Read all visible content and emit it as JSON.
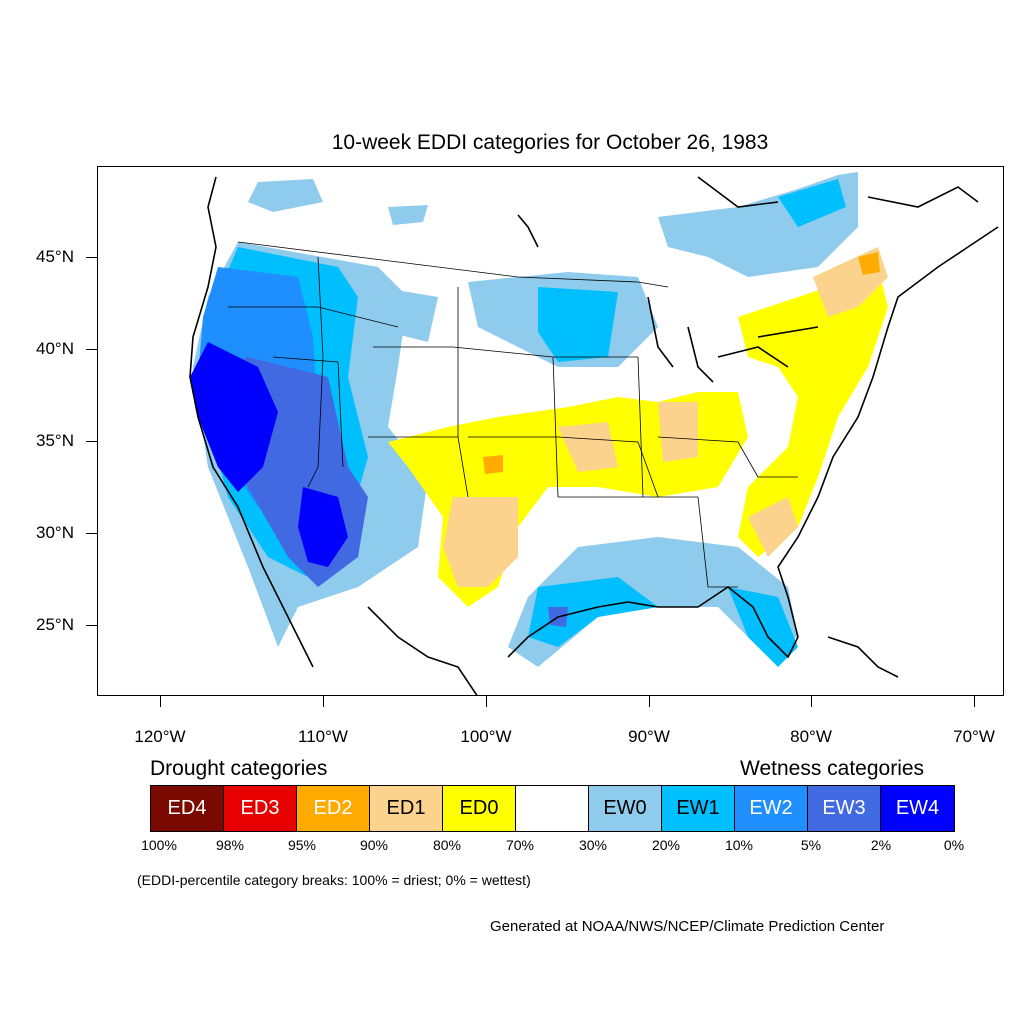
{
  "title": "10-week EDDI categories for October 26, 1983",
  "lat_labels": [
    "45°N",
    "40°N",
    "35°N",
    "30°N",
    "25°N"
  ],
  "lon_labels": [
    "120°W",
    "110°W",
    "100°W",
    "90°W",
    "80°W",
    "70°W"
  ],
  "legend": {
    "drought_heading": "Drought categories",
    "wetness_heading": "Wetness categories",
    "categories": [
      {
        "label": "ED4",
        "color": "#7a0a00",
        "text_color": "#ffffff"
      },
      {
        "label": "ED3",
        "color": "#e60000",
        "text_color": "#ffffff"
      },
      {
        "label": "ED2",
        "color": "#ffaa00",
        "text_color": "#ffffff"
      },
      {
        "label": "ED1",
        "color": "#fcd38d",
        "text_color": "#000000"
      },
      {
        "label": "ED0",
        "color": "#ffff00",
        "text_color": "#000000"
      },
      {
        "label": "",
        "color": "#ffffff",
        "text_color": "#000000"
      },
      {
        "label": "EW0",
        "color": "#8ecbed",
        "text_color": "#000000"
      },
      {
        "label": "EW1",
        "color": "#00bfff",
        "text_color": "#000000"
      },
      {
        "label": "EW2",
        "color": "#1f8fff",
        "text_color": "#ffffff"
      },
      {
        "label": "EW3",
        "color": "#4169e1",
        "text_color": "#ffffff"
      },
      {
        "label": "EW4",
        "color": "#0000ff",
        "text_color": "#ffffff"
      }
    ],
    "breaks": [
      "100%",
      "98%",
      "95%",
      "90%",
      "80%",
      "70%",
      "30%",
      "20%",
      "10%",
      "5%",
      "2%",
      "0%"
    ]
  },
  "note": "(EDDI-percentile category breaks: 100% = driest; 0% = wettest)",
  "credit": "Generated at NOAA/NWS/NCEP/Climate Prediction Center"
}
